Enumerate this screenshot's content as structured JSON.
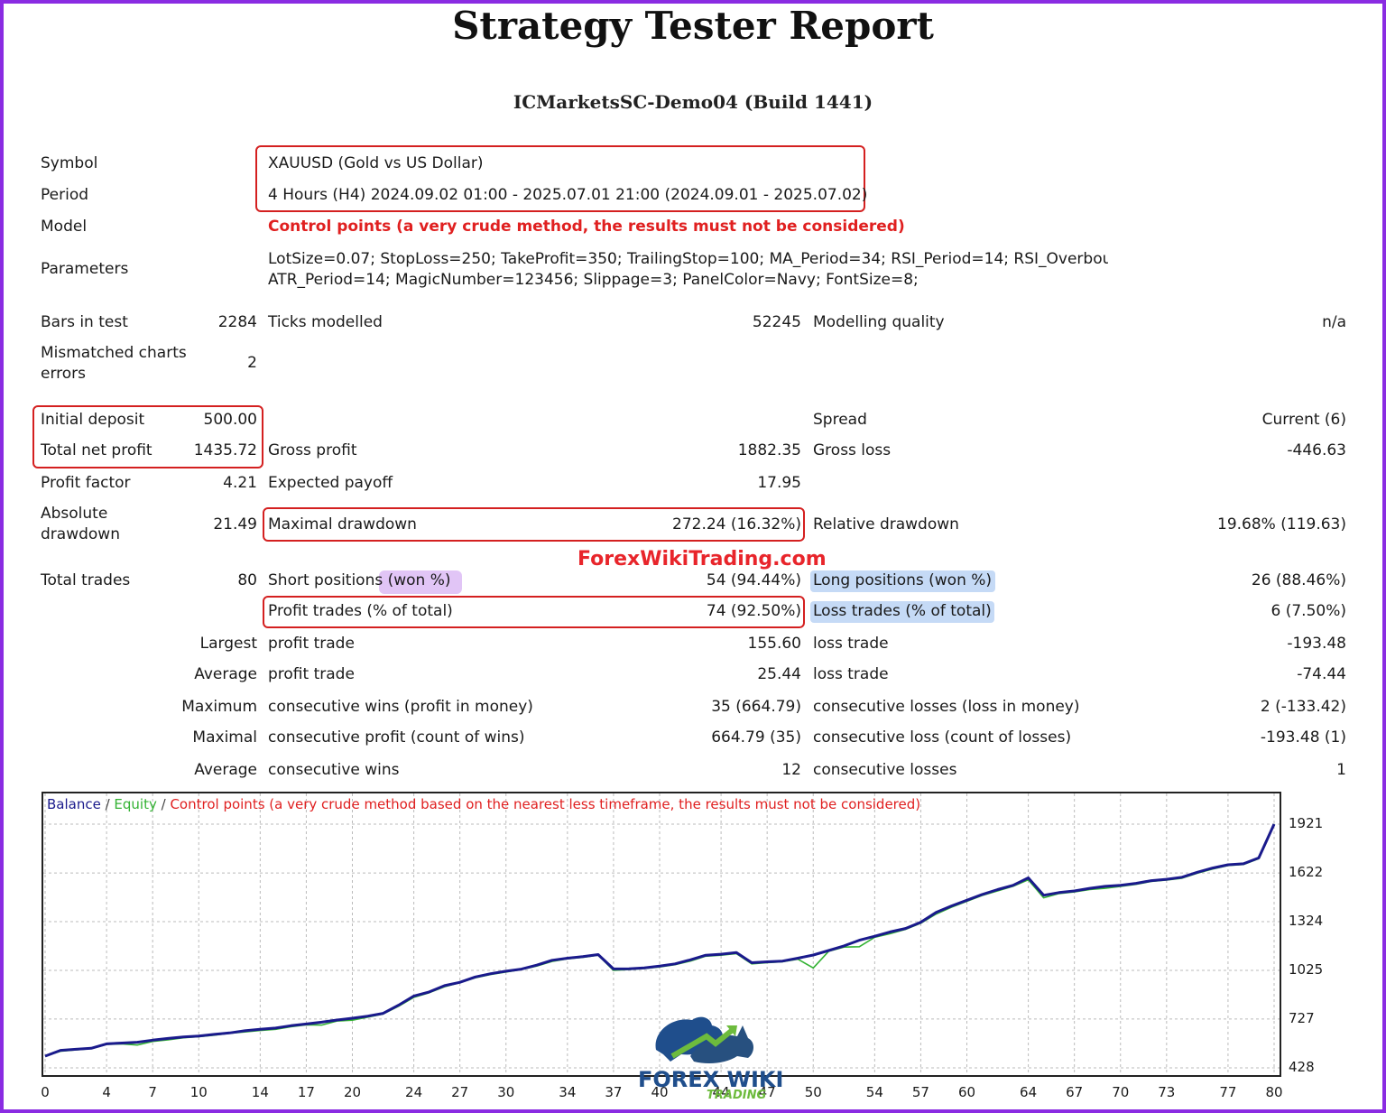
{
  "header": {
    "title": "Strategy Tester Report",
    "server": "ICMarketsSC-Demo04 (Build 1441)"
  },
  "settings": {
    "symbol_label": "Symbol",
    "symbol_value": "XAUUSD (Gold vs US Dollar)",
    "period_label": "Period",
    "period_value": "4 Hours (H4) 2024.09.02 01:00 - 2025.07.01 21:00 (2024.09.01 - 2025.07.02)",
    "model_label": "Model",
    "model_value": "Control points (a very crude method, the results must not be considered)",
    "parameters_label": "Parameters",
    "parameters_line1": "LotSize=0.07; StopLoss=250; TakeProfit=350; TrailingStop=100; MA_Period=34; RSI_Period=14; RSI_Overbou",
    "parameters_line2": "ATR_Period=14; MagicNumber=123456; Slippage=3; PanelColor=Navy; FontSize=8;"
  },
  "modelling": {
    "bars_label": "Bars in test",
    "bars_value": "2284",
    "ticks_label": "Ticks modelled",
    "ticks_value": "52245",
    "quality_label": "Modelling quality",
    "quality_value": "n/a",
    "mismatch_label_1": "Mismatched charts",
    "mismatch_label_2": "errors",
    "mismatch_value": "2"
  },
  "results": {
    "initial_deposit_label": "Initial deposit",
    "initial_deposit_value": "500.00",
    "spread_label": "Spread",
    "spread_value": "Current (6)",
    "net_profit_label": "Total net profit",
    "net_profit_value": "1435.72",
    "gross_profit_label": "Gross profit",
    "gross_profit_value": "1882.35",
    "gross_loss_label": "Gross loss",
    "gross_loss_value": "-446.63",
    "profit_factor_label": "Profit factor",
    "profit_factor_value": "4.21",
    "expected_payoff_label": "Expected payoff",
    "expected_payoff_value": "17.95",
    "abs_drawdown_label_1": "Absolute",
    "abs_drawdown_label_2": "drawdown",
    "abs_drawdown_value": "21.49",
    "max_drawdown_label": "Maximal drawdown",
    "max_drawdown_value": "272.24 (16.32%)",
    "rel_drawdown_label": "Relative drawdown",
    "rel_drawdown_value": "19.68% (119.63)",
    "total_trades_label": "Total trades",
    "total_trades_value": "80",
    "short_label": "Short positions (won %)",
    "short_value": "54 (94.44%)",
    "long_label": "Long positions (won %)",
    "long_value": "26 (88.46%)",
    "profit_trades_label": "Profit trades (% of total)",
    "profit_trades_value": "74 (92.50%)",
    "loss_trades_label": "Loss trades (% of total)",
    "loss_trades_value": "6 (7.50%)",
    "largest_label": "Largest",
    "largest_profit_label": "profit trade",
    "largest_profit_value": "155.60",
    "largest_loss_label": "loss trade",
    "largest_loss_value": "-193.48",
    "average_label": "Average",
    "average_profit_label": "profit trade",
    "average_profit_value": "25.44",
    "average_loss_label": "loss trade",
    "average_loss_value": "-74.44",
    "maximum_label": "Maximum",
    "max_wins_label": "consecutive wins (profit in money)",
    "max_wins_value": "35 (664.79)",
    "max_losses_label": "consecutive losses (loss in money)",
    "max_losses_value": "2 (-133.42)",
    "maximal_label": "Maximal",
    "maximal_profit_label": "consecutive profit (count of wins)",
    "maximal_profit_value": "664.79 (35)",
    "maximal_loss_label": "consecutive loss (count of losses)",
    "maximal_loss_value": "-193.48 (1)",
    "avg2_label": "Average",
    "avg_wins_label": "consecutive wins",
    "avg_wins_value": "12",
    "avg_losses_label": "consecutive losses",
    "avg_losses_value": "1"
  },
  "watermark": "ForexWikiTrading.com",
  "logo": {
    "line1": "FOREX WIKI",
    "line2": "TRADING"
  },
  "colors": {
    "balance": "#1a1a8c",
    "equity": "#33b233",
    "control": "#e02020",
    "box": "#d42020",
    "frame": "#8a2be2"
  },
  "chart_data": {
    "type": "line",
    "legend": {
      "balance": "Balance",
      "sep1": " / ",
      "equity": "Equity",
      "sep2": " / ",
      "control": "Control points (a very crude method based on the nearest less timeframe, the results must not be considered)"
    },
    "x_tick_labels": [
      "0",
      "4",
      "7",
      "10",
      "14",
      "17",
      "20",
      "24",
      "27",
      "30",
      "34",
      "37",
      "40",
      "44",
      "47",
      "50",
      "54",
      "57",
      "60",
      "64",
      "67",
      "70",
      "73",
      "77",
      "80"
    ],
    "y_tick_labels": [
      "1921",
      "1622",
      "1324",
      "1025",
      "727",
      "428"
    ],
    "ylim": [
      428,
      1921
    ],
    "xlim": [
      0,
      80
    ],
    "series": [
      {
        "name": "Balance",
        "x": [
          0,
          1,
          2,
          3,
          4,
          5,
          6,
          7,
          8,
          9,
          10,
          11,
          12,
          13,
          14,
          15,
          16,
          17,
          18,
          19,
          20,
          21,
          22,
          23,
          24,
          25,
          26,
          27,
          28,
          29,
          30,
          31,
          32,
          33,
          34,
          35,
          36,
          37,
          38,
          39,
          40,
          41,
          42,
          43,
          44,
          45,
          46,
          47,
          48,
          49,
          50,
          51,
          52,
          53,
          54,
          55,
          56,
          57,
          58,
          59,
          60,
          61,
          62,
          63,
          64,
          65,
          66,
          67,
          68,
          69,
          70,
          71,
          72,
          73,
          74,
          75,
          76,
          77,
          78,
          79,
          80
        ],
        "values": [
          500,
          535,
          542,
          548,
          575,
          580,
          585,
          598,
          608,
          617,
          623,
          633,
          642,
          655,
          664,
          672,
          686,
          697,
          708,
          721,
          732,
          745,
          762,
          812,
          868,
          893,
          932,
          952,
          985,
          1005,
          1020,
          1033,
          1057,
          1087,
          1100,
          1110,
          1122,
          1034,
          1035,
          1040,
          1052,
          1065,
          1090,
          1118,
          1124,
          1134,
          1072,
          1078,
          1082,
          1100,
          1119,
          1147,
          1175,
          1210,
          1234,
          1261,
          1282,
          1320,
          1380,
          1420,
          1455,
          1490,
          1520,
          1546,
          1592,
          1485,
          1502,
          1512,
          1528,
          1540,
          1546,
          1558,
          1575,
          1583,
          1596,
          1626,
          1652,
          1672,
          1678,
          1714,
          1921
        ]
      },
      {
        "name": "Equity",
        "x": [
          0,
          1,
          2,
          3,
          4,
          5,
          6,
          7,
          8,
          9,
          10,
          11,
          12,
          13,
          14,
          15,
          16,
          17,
          18,
          19,
          20,
          21,
          22,
          23,
          24,
          25,
          26,
          27,
          28,
          29,
          30,
          31,
          32,
          33,
          34,
          35,
          36,
          37,
          38,
          39,
          40,
          41,
          42,
          43,
          44,
          45,
          46,
          47,
          48,
          49,
          50,
          51,
          52,
          53,
          54,
          55,
          56,
          57,
          58,
          59,
          60,
          61,
          62,
          63,
          64,
          65,
          66,
          67,
          68,
          69,
          70,
          71,
          72,
          73,
          74,
          75,
          76,
          77,
          78,
          79,
          80
        ],
        "values": [
          500,
          530,
          538,
          546,
          572,
          575,
          568,
          590,
          600,
          612,
          619,
          628,
          640,
          648,
          657,
          664,
          680,
          692,
          690,
          715,
          720,
          738,
          758,
          805,
          860,
          888,
          925,
          950,
          980,
          1000,
          1015,
          1030,
          1052,
          1080,
          1096,
          1105,
          1118,
          1025,
          1030,
          1036,
          1046,
          1060,
          1082,
          1112,
          1118,
          1128,
          1065,
          1072,
          1078,
          1094,
          1040,
          1142,
          1168,
          1170,
          1228,
          1250,
          1276,
          1314,
          1370,
          1412,
          1448,
          1484,
          1512,
          1540,
          1580,
          1470,
          1496,
          1506,
          1520,
          1528,
          1540,
          1552,
          1570,
          1578,
          1590,
          1620,
          1646,
          1668,
          1674,
          1710,
          1921
        ]
      }
    ]
  }
}
